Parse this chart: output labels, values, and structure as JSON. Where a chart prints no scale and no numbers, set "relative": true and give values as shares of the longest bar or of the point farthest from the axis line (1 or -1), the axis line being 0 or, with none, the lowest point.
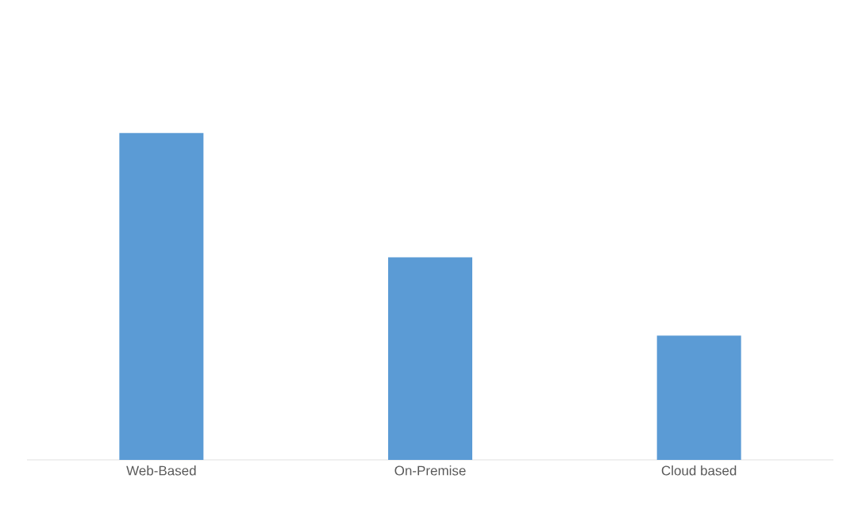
{
  "chart_data": {
    "type": "bar",
    "relative": true,
    "categories": [
      "Web-Based",
      "On-Premise",
      "Cloud based"
    ],
    "values": [
      1,
      0.62,
      0.38
    ],
    "color": "#5b9bd5"
  }
}
